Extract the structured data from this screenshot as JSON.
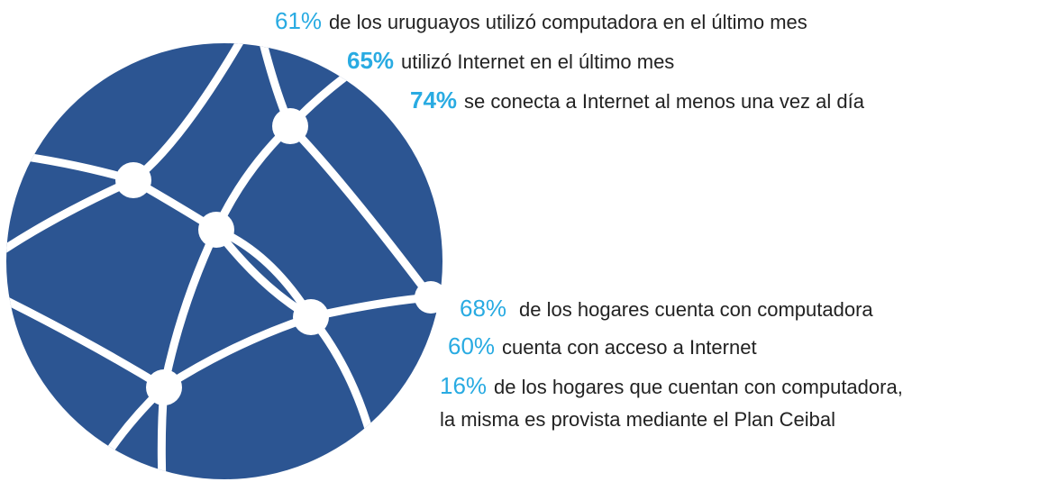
{
  "top_stats": [
    {
      "percent": "61%",
      "text": "de los uruguayos utilizó computadora en el último mes"
    },
    {
      "percent": "65%",
      "text": "utilizó Internet en el último mes"
    },
    {
      "percent": "74%",
      "text": "se conecta a Internet al menos una vez al día"
    }
  ],
  "bottom_stats": [
    {
      "percent": "68%",
      "text": "de los hogares cuenta con computadora"
    },
    {
      "percent": "60%",
      "text": "cuenta con acceso a Internet"
    },
    {
      "percent": "16%",
      "text": "de los hogares que cuentan con computadora,",
      "continuation": "la misma es provista mediante el Plan Ceibal"
    }
  ]
}
